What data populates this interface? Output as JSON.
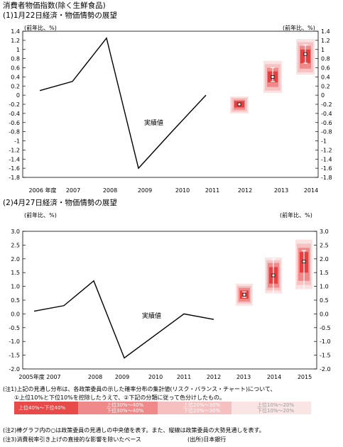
{
  "heading": "消費者物価指数(除く生鮮食品)",
  "footnotes": {
    "note1_line1": "(注1)上記の見通し分布は、各政策委員の示した確率分布の集計値(リスク・バランス・チャート)について、",
    "note1_line2": "①上位10%と下位10%を控除したうえで、②下記の分類に従って色分けしたもの。",
    "note2": "(注2)棒グラフ内の○は政策委員の見通しの中央値を表す。また、縦線は政策委員の大勢見通しを表す。",
    "note3": "(注3)消費税率引き上げの直接的な影響を除いたベース",
    "source": "(出所)日本銀行"
  },
  "legend": [
    {
      "l1": "上位40%～下位40%",
      "l2": "",
      "color": "#e84a4a"
    },
    {
      "l1": "上位30%～40%",
      "l2": "下位30%～40%",
      "color": "#f08a8a"
    },
    {
      "l1": "上位20%～30%",
      "l2": "下位20%～30%",
      "color": "#f6c0c0"
    },
    {
      "l1": "上位10%～20%",
      "l2": "下位10%～20%",
      "color": "#fbe4e4"
    }
  ],
  "chart_data": [
    {
      "type": "line",
      "title": "(1)1月22日経済・物価情勢の展望",
      "unit_left": "(前年比、%)",
      "unit_right": "(前年比、%)",
      "ylim": [
        -1.8,
        1.4
      ],
      "yticks": [
        1.4,
        1.2,
        1.0,
        0.8,
        0.6,
        0.4,
        0.2,
        0.0,
        -0.2,
        -0.4,
        -0.6,
        -0.8,
        -1.0,
        -1.2,
        -1.4,
        -1.6,
        -1.8
      ],
      "ytick_labels": [
        "1.4",
        "1.2",
        "1",
        "0.8",
        "0.6",
        "0.4",
        "0.2",
        "0",
        "-0.2",
        "-0.4",
        "-0.6",
        "-0.8",
        "-1",
        "-1.2",
        "-1.4",
        "-1.6",
        "-1.8"
      ],
      "x_labels": [
        "2006 年度",
        "2007",
        "2008",
        "2009",
        "2010",
        "2011",
        "2012",
        "2013",
        "2014"
      ],
      "actual_label": "実績値",
      "series": [
        {
          "name": "",
          "x": [
            2006,
            2007,
            2008,
            2009,
            2010,
            2011
          ],
          "values": [
            0.1,
            0.3,
            1.25,
            -1.6,
            -0.8,
            0.0
          ]
        }
      ],
      "forecast": [
        {
          "year": 2012,
          "median": -0.2,
          "range": [
            -0.2,
            -0.2
          ],
          "bands": [
            [
              -0.27,
              -0.13
            ],
            [
              -0.32,
              -0.1
            ],
            [
              -0.36,
              -0.06
            ],
            [
              -0.4,
              -0.03
            ]
          ]
        },
        {
          "year": 2013,
          "median": 0.4,
          "range": [
            0.3,
            0.6
          ],
          "bands": [
            [
              0.28,
              0.52
            ],
            [
              0.18,
              0.6
            ],
            [
              0.1,
              0.68
            ],
            [
              0.05,
              0.75
            ]
          ]
        },
        {
          "year": 2014,
          "median": 0.9,
          "range": [
            0.7,
            1.1
          ],
          "bands": [
            [
              0.7,
              1.0
            ],
            [
              0.58,
              1.08
            ],
            [
              0.5,
              1.16
            ],
            [
              0.45,
              1.23
            ]
          ]
        }
      ]
    },
    {
      "type": "line",
      "title": "(2)4月27日経済・物価情勢の展望",
      "unit_left": "(前年比、%)",
      "unit_right": "(前年比、%)",
      "ylim": [
        -2.0,
        3.0
      ],
      "yticks": [
        3.0,
        2.5,
        2.0,
        1.5,
        1.0,
        0.5,
        0.0,
        -0.5,
        -1.0,
        -1.5,
        -2.0
      ],
      "ytick_labels": [
        "3.0",
        "2.5",
        "2.0",
        "1.5",
        "1.0",
        "0.5",
        "0.0",
        "-0.5",
        "-1.0",
        "-1.5",
        "-2.0"
      ],
      "x_labels": [
        "2005年度 2007",
        "2008",
        "2009",
        "2010",
        "2011",
        "2012",
        "2013",
        "2014",
        "2015"
      ],
      "actual_label": "実績値",
      "series": [
        {
          "name": "",
          "x": [
            2006,
            2007,
            2008,
            2009,
            2010,
            2011,
            2012
          ],
          "values": [
            0.1,
            0.3,
            1.2,
            -1.6,
            -0.8,
            0.0,
            -0.2
          ]
        }
      ],
      "forecast": [
        {
          "year": 2013,
          "median": 0.7,
          "range": [
            0.6,
            0.8
          ],
          "bands": [
            [
              0.55,
              0.85
            ],
            [
              0.45,
              0.95
            ],
            [
              0.38,
              1.02
            ],
            [
              0.3,
              1.1
            ]
          ]
        },
        {
          "year": 2014,
          "median": 1.4,
          "range": [
            0.7,
            2.0
          ],
          "bands": [
            [
              1.1,
              1.7
            ],
            [
              0.95,
              1.85
            ],
            [
              0.85,
              1.95
            ],
            [
              0.75,
              2.05
            ]
          ]
        },
        {
          "year": 2015,
          "median": 1.9,
          "range": [
            0.8,
            2.3
          ],
          "bands": [
            [
              1.5,
              2.25
            ],
            [
              1.2,
              2.4
            ],
            [
              1.05,
              2.55
            ],
            [
              0.9,
              2.7
            ]
          ]
        }
      ]
    }
  ]
}
